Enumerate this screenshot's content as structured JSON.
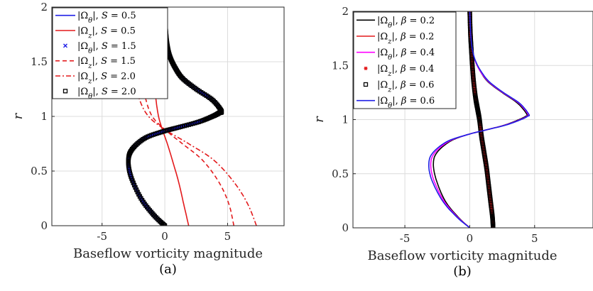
{
  "colors": {
    "blue": "#1f1fe6",
    "red": "#e31a1c",
    "magenta": "#ff00ff",
    "black": "#000000",
    "grid": "#dcdcdc"
  },
  "chart_data": [
    {
      "type": "line",
      "caption": "(a)",
      "xlabel": "Baseflow vorticity magnitude",
      "ylabel": "r",
      "xlim": [
        -9,
        9.5
      ],
      "ylim": [
        0,
        2
      ],
      "xticks": [
        "-5",
        "0",
        "5"
      ],
      "yticks": [
        "0",
        "0.5",
        "1",
        "1.5",
        "2"
      ],
      "xtick_values": [
        -5,
        0,
        5
      ],
      "ytick_values": [
        0,
        0.5,
        1,
        1.5,
        2
      ],
      "grid": true,
      "legend_position": "top-left",
      "series": [
        {
          "name": "|Ω_θ|, S = 0.5",
          "style": "solid",
          "color": "blue",
          "x": [
            0,
            -0.9,
            -1.9,
            -2.7,
            -2.9,
            -2.6,
            -1.6,
            -0.2,
            1.1,
            2.7,
            3.8,
            4.3,
            4.5,
            3.8,
            2.5,
            1.4,
            0.8,
            0.4,
            0.2,
            0.1,
            0.05,
            0.0
          ],
          "y": [
            0,
            0.1,
            0.25,
            0.45,
            0.6,
            0.7,
            0.8,
            0.86,
            0.9,
            0.95,
            1.0,
            1.03,
            1.05,
            1.15,
            1.25,
            1.35,
            1.45,
            1.55,
            1.65,
            1.75,
            1.85,
            2.0
          ]
        },
        {
          "name": "|Ω_z|, S = 0.5",
          "style": "solid",
          "color": "red",
          "x": [
            1.9,
            1.5,
            1.1,
            0.6,
            0.2,
            -0.2,
            -0.5,
            -0.7,
            -0.8,
            -0.7,
            -0.4,
            -0.1,
            0.0
          ],
          "y": [
            0,
            0.2,
            0.4,
            0.6,
            0.75,
            0.88,
            1.0,
            1.15,
            1.3,
            1.45,
            1.6,
            1.8,
            2.0
          ]
        },
        {
          "name": "|Ω_θ|, S = 1.5",
          "style": "x-markers",
          "color": "blue",
          "x": [
            0,
            -0.9,
            -1.9,
            -2.7,
            -2.9,
            -2.6,
            -1.6,
            -0.2,
            1.1,
            2.7,
            3.8,
            4.3,
            4.5,
            3.8,
            2.5,
            1.4,
            0.8,
            0.4,
            0.2,
            0.1,
            0.05,
            0.0
          ],
          "y": [
            0,
            0.1,
            0.25,
            0.45,
            0.6,
            0.7,
            0.8,
            0.86,
            0.9,
            0.95,
            1.0,
            1.03,
            1.05,
            1.15,
            1.25,
            1.35,
            1.45,
            1.55,
            1.65,
            1.75,
            1.85,
            2.0
          ]
        },
        {
          "name": "|Ω_z|, S = 1.5",
          "style": "dashed",
          "color": "red",
          "x": [
            5.5,
            5.1,
            4.3,
            3.0,
            1.4,
            0.0,
            -1.0,
            -1.5,
            -1.7,
            -1.4,
            -0.8,
            -0.3,
            0.0
          ],
          "y": [
            0,
            0.2,
            0.4,
            0.6,
            0.75,
            0.88,
            1.0,
            1.15,
            1.3,
            1.45,
            1.6,
            1.8,
            2.0
          ]
        },
        {
          "name": "|Ω_z|, S = 2.0",
          "style": "dashdot",
          "color": "red",
          "x": [
            7.3,
            6.6,
            5.5,
            3.9,
            1.9,
            0.0,
            -1.3,
            -2.0,
            -2.2,
            -1.8,
            -1.1,
            -0.4,
            0.0
          ],
          "y": [
            0,
            0.2,
            0.4,
            0.6,
            0.75,
            0.88,
            1.0,
            1.15,
            1.3,
            1.45,
            1.6,
            1.8,
            2.0
          ]
        },
        {
          "name": "|Ω_θ|, S = 2.0",
          "style": "square-markers",
          "color": "black",
          "x": [
            0,
            -0.9,
            -1.9,
            -2.7,
            -2.9,
            -2.6,
            -1.6,
            -0.2,
            1.1,
            2.7,
            3.8,
            4.3,
            4.5,
            3.8,
            2.5,
            1.4,
            0.8,
            0.4,
            0.2,
            0.1,
            0.05,
            0.0
          ],
          "y": [
            0,
            0.1,
            0.25,
            0.45,
            0.6,
            0.7,
            0.8,
            0.86,
            0.9,
            0.95,
            1.0,
            1.03,
            1.05,
            1.15,
            1.25,
            1.35,
            1.45,
            1.55,
            1.65,
            1.75,
            1.85,
            2.0
          ]
        }
      ]
    },
    {
      "type": "line",
      "caption": "(b)",
      "xlabel": "Baseflow vorticity magnitude",
      "ylabel": "r",
      "xlim": [
        -9,
        9.5
      ],
      "ylim": [
        0,
        2
      ],
      "xticks": [
        "-5",
        "0",
        "5"
      ],
      "yticks": [
        "0",
        "0.5",
        "1",
        "1.5",
        "2"
      ],
      "xtick_values": [
        -5,
        0,
        5
      ],
      "ytick_values": [
        0,
        0.5,
        1,
        1.5,
        2
      ],
      "grid": true,
      "legend_position": "top-left",
      "series": [
        {
          "name": "|Ω_θ|, β = 0.2",
          "style": "solid",
          "color": "black",
          "x": [
            0,
            -0.9,
            -1.9,
            -2.6,
            -2.8,
            -2.5,
            -1.5,
            -0.2,
            1.1,
            2.7,
            3.8,
            4.3,
            4.4,
            3.7,
            2.5,
            1.4,
            0.8,
            0.4,
            0.2,
            0.1,
            0.05,
            0.0
          ],
          "y": [
            0,
            0.1,
            0.25,
            0.45,
            0.6,
            0.7,
            0.8,
            0.86,
            0.9,
            0.95,
            1.0,
            1.03,
            1.05,
            1.15,
            1.25,
            1.35,
            1.45,
            1.55,
            1.65,
            1.75,
            1.85,
            2.0
          ]
        },
        {
          "name": "|Ω_z|, β = 0.2",
          "style": "solid",
          "color": "red",
          "x": [
            1.8,
            1.75,
            1.6,
            1.45,
            1.3,
            1.1,
            0.9,
            0.75,
            0.6,
            0.45,
            0.3,
            0.2,
            0.12,
            0.05,
            0.0
          ],
          "y": [
            0,
            0.1,
            0.25,
            0.4,
            0.55,
            0.7,
            0.85,
            1.0,
            1.1,
            1.2,
            1.35,
            1.5,
            1.65,
            1.8,
            2.0
          ]
        },
        {
          "name": "|Ω_θ|, β = 0.4",
          "style": "solid",
          "color": "magenta",
          "x": [
            0,
            -0.95,
            -2.0,
            -2.8,
            -3.0,
            -2.65,
            -1.6,
            -0.2,
            1.1,
            2.75,
            3.9,
            4.4,
            4.5,
            3.8,
            2.55,
            1.45,
            0.8,
            0.4,
            0.2,
            0.1,
            0.05,
            0.0
          ],
          "y": [
            0,
            0.1,
            0.25,
            0.45,
            0.6,
            0.7,
            0.8,
            0.86,
            0.9,
            0.95,
            1.0,
            1.03,
            1.05,
            1.15,
            1.25,
            1.35,
            1.45,
            1.55,
            1.65,
            1.75,
            1.85,
            2.0
          ]
        },
        {
          "name": "|Ω_z|, β = 0.4",
          "style": "star-markers",
          "color": "red",
          "x": [
            1.8,
            1.75,
            1.6,
            1.45,
            1.3,
            1.1,
            0.9,
            0.75,
            0.6,
            0.45,
            0.3,
            0.2,
            0.12,
            0.05,
            0.0
          ],
          "y": [
            0,
            0.1,
            0.25,
            0.4,
            0.55,
            0.7,
            0.85,
            1.0,
            1.1,
            1.2,
            1.35,
            1.5,
            1.65,
            1.8,
            2.0
          ]
        },
        {
          "name": "|Ω_z|, β = 0.6",
          "style": "square-markers",
          "color": "black",
          "x": [
            1.8,
            1.75,
            1.6,
            1.45,
            1.3,
            1.1,
            0.9,
            0.75,
            0.6,
            0.45,
            0.3,
            0.2,
            0.12,
            0.05,
            0.0
          ],
          "y": [
            0,
            0.1,
            0.25,
            0.4,
            0.55,
            0.7,
            0.85,
            1.0,
            1.1,
            1.2,
            1.35,
            1.5,
            1.65,
            1.8,
            2.0
          ]
        },
        {
          "name": "|Ω_θ|, β = 0.6",
          "style": "solid",
          "color": "blue",
          "x": [
            0,
            -1.0,
            -2.1,
            -2.95,
            -3.15,
            -2.8,
            -1.7,
            -0.2,
            1.1,
            2.8,
            3.95,
            4.45,
            4.55,
            3.85,
            2.6,
            1.5,
            0.85,
            0.42,
            0.2,
            0.1,
            0.05,
            0.0
          ],
          "y": [
            0,
            0.1,
            0.25,
            0.45,
            0.6,
            0.7,
            0.8,
            0.86,
            0.9,
            0.95,
            1.0,
            1.03,
            1.05,
            1.15,
            1.25,
            1.35,
            1.45,
            1.55,
            1.65,
            1.75,
            1.85,
            2.0
          ]
        }
      ]
    }
  ]
}
